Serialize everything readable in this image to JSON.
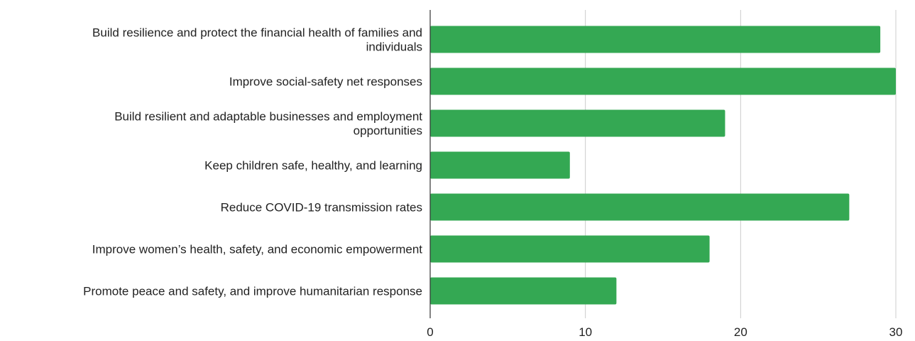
{
  "chart_data": {
    "type": "bar",
    "orientation": "horizontal",
    "title": "",
    "xlabel": "",
    "ylabel": "",
    "categories": [
      [
        "Build resilience and protect the financial health of families and",
        "individuals"
      ],
      [
        "Improve social-safety net responses"
      ],
      [
        "Build resilient and adaptable businesses and employment",
        "opportunities"
      ],
      [
        "Keep children safe, healthy, and learning"
      ],
      [
        "Reduce COVID-19 transmission rates"
      ],
      [
        "Improve women’s health, safety, and economic empowerment"
      ],
      [
        "Promote peace and safety, and improve humanitarian response"
      ]
    ],
    "values": [
      29,
      30,
      19,
      9,
      27,
      18,
      12
    ],
    "xlim": [
      0,
      30
    ],
    "xticks": [
      0,
      10,
      20,
      30
    ],
    "grid": true,
    "bar_color": "#34a853",
    "gridline_color": "#cccccc",
    "axis_color": "#333333"
  }
}
